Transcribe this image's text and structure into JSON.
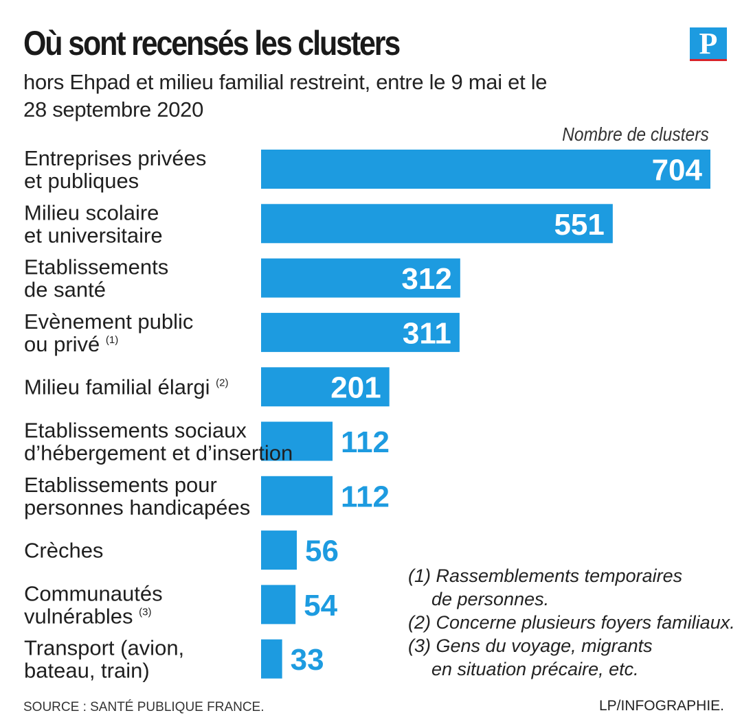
{
  "header": {
    "title": "Où sont recensés les clusters",
    "subtitle": "hors Ehpad et milieu familial restreint, entre le 9 mai et le 28 septembre 2020",
    "logo_letter": "P"
  },
  "chart_data": {
    "type": "bar",
    "orientation": "horizontal",
    "title": "Où sont recensés les clusters",
    "subtitle": "hors Ehpad et milieu familial restreint, entre le 9 mai et le 28 septembre 2020",
    "series_label": "Nombre de clusters",
    "categories": [
      {
        "lines": [
          "Entreprises privées",
          "et publiques"
        ],
        "note": ""
      },
      {
        "lines": [
          "Milieu scolaire",
          "et universitaire"
        ],
        "note": ""
      },
      {
        "lines": [
          "Etablissements",
          "de santé"
        ],
        "note": ""
      },
      {
        "lines": [
          "Evènement public",
          "ou privé"
        ],
        "note": "(1)"
      },
      {
        "lines": [
          "Milieu familial élargi"
        ],
        "note": "(2)"
      },
      {
        "lines": [
          "Etablissements sociaux",
          "d’hébergement et d’insertion"
        ],
        "note": ""
      },
      {
        "lines": [
          "Etablissements pour",
          "personnes handicapées"
        ],
        "note": ""
      },
      {
        "lines": [
          "Crèches"
        ],
        "note": ""
      },
      {
        "lines": [
          "Communautés",
          "vulnérables"
        ],
        "note": "(3)"
      },
      {
        "lines": [
          "Transport (avion,",
          "bateau, train)"
        ],
        "note": ""
      }
    ],
    "values": [
      704,
      551,
      312,
      311,
      201,
      112,
      112,
      56,
      54,
      33
    ],
    "xlim": [
      0,
      704
    ],
    "grid": false,
    "legend": "none",
    "bar_color": "#1d9be0"
  },
  "notes": [
    {
      "number": "(1)",
      "lines": [
        "Rassemblements temporaires",
        "de personnes."
      ]
    },
    {
      "number": "(2)",
      "lines": [
        "Concerne plusieurs foyers familiaux."
      ]
    },
    {
      "number": "(3)",
      "lines": [
        "Gens du voyage, migrants",
        "en situation précaire, etc."
      ]
    }
  ],
  "footer": {
    "source": "SOURCE : SANTÉ PUBLIQUE FRANCE.",
    "credit": "LP/INFOGRAPHIE."
  },
  "colors": {
    "bar": "#1d9be0",
    "value_inside": "#ffffff",
    "value_outside": "#1d9be0",
    "logo_bg": "#1d9be0",
    "logo_rule": "#d8232a"
  }
}
